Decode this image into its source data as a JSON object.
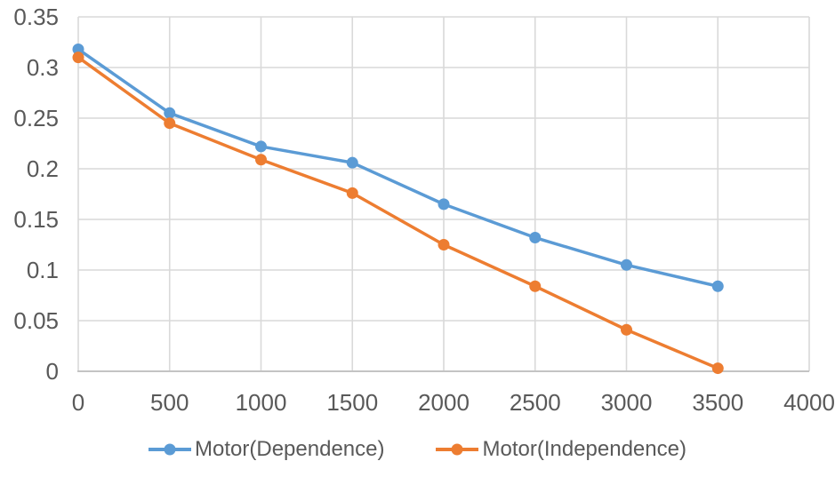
{
  "chart_data": {
    "type": "line",
    "title": "",
    "xlabel": "",
    "ylabel": "",
    "x": [
      0,
      500,
      1000,
      1500,
      2000,
      2500,
      3000,
      3500
    ],
    "series": [
      {
        "name": "Motor(Dependence)",
        "color": "#5B9BD5",
        "values": [
          0.318,
          0.255,
          0.222,
          0.206,
          0.165,
          0.132,
          0.105,
          0.084
        ]
      },
      {
        "name": "Motor(Independence)",
        "color": "#ED7D31",
        "values": [
          0.31,
          0.245,
          0.209,
          0.176,
          0.125,
          0.084,
          0.041,
          0.003
        ]
      }
    ],
    "xlim": [
      0,
      4000
    ],
    "ylim": [
      0,
      0.35
    ],
    "x_ticks": [
      {
        "v": 0,
        "label": "0"
      },
      {
        "v": 500,
        "label": "500"
      },
      {
        "v": 1000,
        "label": "1000"
      },
      {
        "v": 1500,
        "label": "1500"
      },
      {
        "v": 2000,
        "label": "2000"
      },
      {
        "v": 2500,
        "label": "2500"
      },
      {
        "v": 3000,
        "label": "3000"
      },
      {
        "v": 3500,
        "label": "3500"
      },
      {
        "v": 4000,
        "label": "4000"
      }
    ],
    "y_ticks": [
      {
        "v": 0.0,
        "label": "0"
      },
      {
        "v": 0.05,
        "label": "0.05"
      },
      {
        "v": 0.1,
        "label": "0.1"
      },
      {
        "v": 0.15,
        "label": "0.15"
      },
      {
        "v": 0.2,
        "label": "0.2"
      },
      {
        "v": 0.25,
        "label": "0.25"
      },
      {
        "v": 0.3,
        "label": "0.3"
      },
      {
        "v": 0.35,
        "label": "0.35"
      }
    ],
    "grid": true,
    "legend_position": "bottom",
    "marker": "circle"
  },
  "style_colors": {
    "gridline": "#D9D9D9",
    "axis_line": "#BFBFBF",
    "tick_text": "#595959",
    "background": "#FFFFFF"
  }
}
